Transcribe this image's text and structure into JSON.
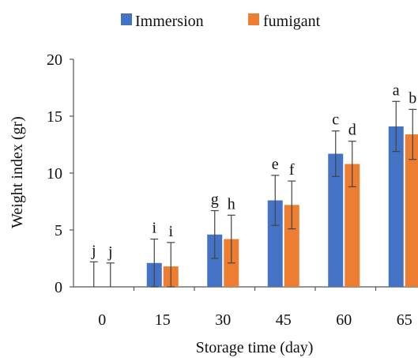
{
  "chart_data": {
    "type": "bar",
    "title": "",
    "xlabel": "Storage time (day)",
    "ylabel": "Weight index (gr)",
    "ylim": [
      0,
      20
    ],
    "yticks": [
      0,
      5,
      10,
      15,
      20
    ],
    "grid": false,
    "legend_position": "top",
    "categories": [
      "0",
      "15",
      "30",
      "45",
      "60",
      "65"
    ],
    "series": [
      {
        "name": "Immersion",
        "color": "#4472C4",
        "values": [
          0,
          2.1,
          4.6,
          7.6,
          11.7,
          14.1
        ],
        "error": [
          2.2,
          2.1,
          2.1,
          2.2,
          2.0,
          2.2
        ],
        "letters": [
          "j",
          "i",
          "g",
          "e",
          "c",
          "a"
        ]
      },
      {
        "name": "fumigant",
        "color": "#ED7D31",
        "values": [
          0,
          1.8,
          4.2,
          7.2,
          10.8,
          13.4
        ],
        "error": [
          2.1,
          2.1,
          2.1,
          2.1,
          2.0,
          2.2
        ],
        "letters": [
          "j",
          "i",
          "h",
          "f",
          "d",
          "b"
        ]
      }
    ]
  }
}
